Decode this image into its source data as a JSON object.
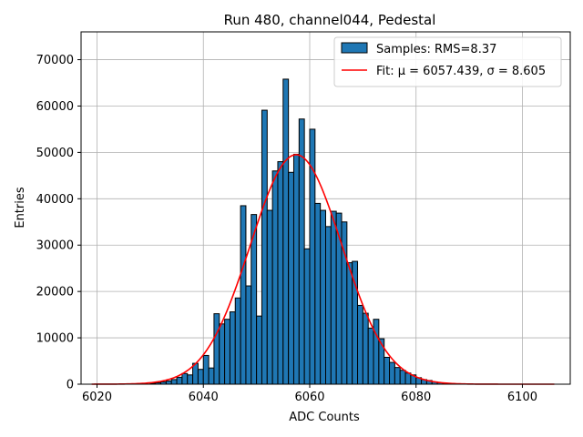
{
  "chart_data": {
    "type": "bar",
    "title": "Run 480, channel044, Pedestal",
    "xlabel": "ADC Counts",
    "ylabel": "Entries",
    "xlim": [
      6017,
      6109
    ],
    "ylim": [
      0,
      76000
    ],
    "xticks": [
      6020,
      6040,
      6060,
      6080,
      6100
    ],
    "yticks": [
      0,
      10000,
      20000,
      30000,
      40000,
      50000,
      60000,
      70000
    ],
    "grid": true,
    "legend_position": "top-right",
    "bin_width": 1,
    "legend": [
      {
        "kind": "patch",
        "label": "Samples: RMS=8.37",
        "color": "#1f77b4"
      },
      {
        "kind": "line",
        "label": "Fit: μ = 6057.439, σ = 8.605",
        "color": "#ff0000"
      }
    ],
    "x": [
      6030,
      6031,
      6032,
      6033,
      6034,
      6035,
      6036,
      6037,
      6038,
      6039,
      6040,
      6041,
      6042,
      6043,
      6044,
      6045,
      6046,
      6047,
      6048,
      6049,
      6050,
      6051,
      6052,
      6053,
      6054,
      6055,
      6056,
      6057,
      6058,
      6059,
      6060,
      6061,
      6062,
      6063,
      6064,
      6065,
      6066,
      6067,
      6068,
      6069,
      6070,
      6071,
      6072,
      6073,
      6074,
      6075,
      6076,
      6077,
      6078,
      6079,
      6080,
      6081,
      6082,
      6083,
      6084,
      6085
    ],
    "values": [
      200,
      300,
      500,
      700,
      1000,
      1500,
      2300,
      2000,
      4500,
      3200,
      6200,
      3500,
      15200,
      13000,
      14000,
      15600,
      18600,
      38500,
      21200,
      36600,
      14700,
      59100,
      37500,
      46000,
      48000,
      65800,
      45700,
      49600,
      57200,
      29200,
      55000,
      39000,
      37500,
      34000,
      37300,
      36900,
      35000,
      26200,
      26500,
      17000,
      15300,
      12100,
      14000,
      9800,
      5800,
      4700,
      3600,
      3000,
      2400,
      2000,
      1400,
      1000,
      800,
      500,
      300,
      200
    ],
    "series": [
      {
        "name": "Samples: RMS=8.37",
        "kind": "histogram"
      },
      {
        "name": "Fit: μ = 6057.439, σ = 8.605",
        "kind": "gaussian",
        "mu": 6057.439,
        "sigma": 8.605,
        "amplitude": 49500,
        "range": [
          6019,
          6106
        ]
      }
    ]
  }
}
